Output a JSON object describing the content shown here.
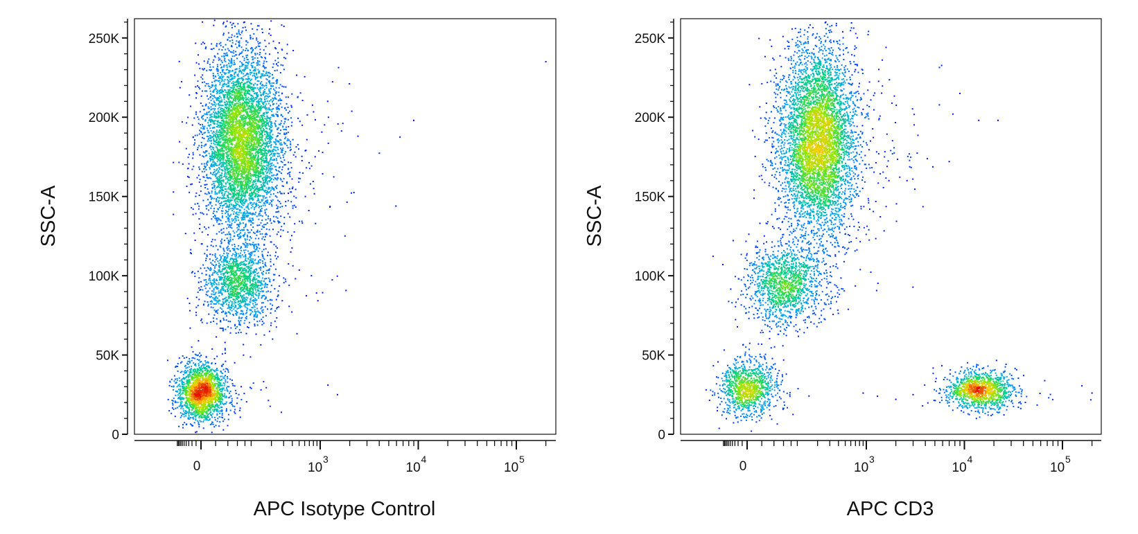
{
  "chart_data": [
    {
      "type": "scatter",
      "subtype": "flow-cytometry pseudocolor density plot",
      "xlabel": "APC Isotype Control",
      "ylabel": "SSC-A",
      "x_scale": "biexponential (logicle)",
      "xlim": [
        -300,
        200000
      ],
      "ylim": [
        0,
        262144
      ],
      "grid": false,
      "legend": "none",
      "x_ticks": [
        {
          "value": 0,
          "label": "0"
        },
        {
          "value": 1000,
          "base": "10",
          "exponent": "3"
        },
        {
          "value": 10000,
          "base": "10",
          "exponent": "4"
        },
        {
          "value": 100000,
          "base": "10",
          "exponent": "5"
        }
      ],
      "y_ticks": [
        {
          "value": 0,
          "label": "0"
        },
        {
          "value": 50000,
          "label": "50K"
        },
        {
          "value": 100000,
          "label": "100K"
        },
        {
          "value": 150000,
          "label": "150K"
        },
        {
          "value": 200000,
          "label": "200K"
        },
        {
          "value": 250000,
          "label": "250K"
        }
      ],
      "populations": [
        {
          "x_median": 0,
          "ssc_median": 27000,
          "ssc_spread": 9000,
          "x_spread_decades": 0.12,
          "relative_size": 0.22
        },
        {
          "x_median": 60,
          "ssc_median": 95000,
          "ssc_spread": 13000,
          "x_spread_decades": 0.18,
          "relative_size": 0.16
        },
        {
          "x_median": 70,
          "ssc_median": 185000,
          "ssc_spread": 30000,
          "x_spread_decades": 0.2,
          "relative_size": 0.62
        }
      ],
      "outlier_events": [
        {
          "x": 1200,
          "y": 31000
        },
        {
          "x": 1500,
          "y": 25000
        },
        {
          "x": 9000,
          "y": 198000
        },
        {
          "x": 200000,
          "y": 235000
        },
        {
          "x": 350,
          "y": 152000
        },
        {
          "x": 400,
          "y": 155000
        },
        {
          "x": 380,
          "y": 115000
        }
      ]
    },
    {
      "type": "scatter",
      "subtype": "flow-cytometry pseudocolor density plot",
      "xlabel": "APC CD3",
      "ylabel": "SSC-A",
      "x_scale": "biexponential (logicle)",
      "xlim": [
        -300,
        200000
      ],
      "ylim": [
        0,
        262144
      ],
      "grid": false,
      "legend": "none",
      "x_ticks": [
        {
          "value": 0,
          "label": "0"
        },
        {
          "value": 1000,
          "base": "10",
          "exponent": "3"
        },
        {
          "value": 10000,
          "base": "10",
          "exponent": "4"
        },
        {
          "value": 100000,
          "base": "10",
          "exponent": "5"
        }
      ],
      "y_ticks": [
        {
          "value": 0,
          "label": "0"
        },
        {
          "value": 50000,
          "label": "50K"
        },
        {
          "value": 100000,
          "label": "100K"
        },
        {
          "value": 150000,
          "label": "150K"
        },
        {
          "value": 200000,
          "label": "200K"
        },
        {
          "value": 250000,
          "label": "250K"
        }
      ],
      "populations": [
        {
          "x_median": 0,
          "ssc_median": 30000,
          "ssc_spread": 9000,
          "x_spread_decades": 0.14,
          "relative_size": 0.12
        },
        {
          "x_median": 60,
          "ssc_median": 95000,
          "ssc_spread": 13000,
          "x_spread_decades": 0.2,
          "relative_size": 0.16
        },
        {
          "x_median": 200,
          "ssc_median": 185000,
          "ssc_spread": 30000,
          "x_spread_decades": 0.2,
          "relative_size": 0.58
        },
        {
          "x_median": 14000,
          "ssc_median": 28000,
          "ssc_spread": 6000,
          "x_spread_decades": 0.17,
          "relative_size": 0.14
        }
      ],
      "outlier_events": [
        {
          "x": 9000,
          "y": 215000
        },
        {
          "x": 14000,
          "y": 198000
        },
        {
          "x": 22000,
          "y": 198000
        },
        {
          "x": 7000,
          "y": 172000
        },
        {
          "x": 1700,
          "y": 160000
        },
        {
          "x": 2600,
          "y": 160000
        },
        {
          "x": 700,
          "y": 230000
        },
        {
          "x": 900,
          "y": 205000
        },
        {
          "x": 1100,
          "y": 185000
        },
        {
          "x": 900,
          "y": 26000
        },
        {
          "x": 1300,
          "y": 24000
        },
        {
          "x": 2000,
          "y": 22000
        },
        {
          "x": 3000,
          "y": 25000
        },
        {
          "x": 200000,
          "y": 26000
        }
      ]
    }
  ]
}
